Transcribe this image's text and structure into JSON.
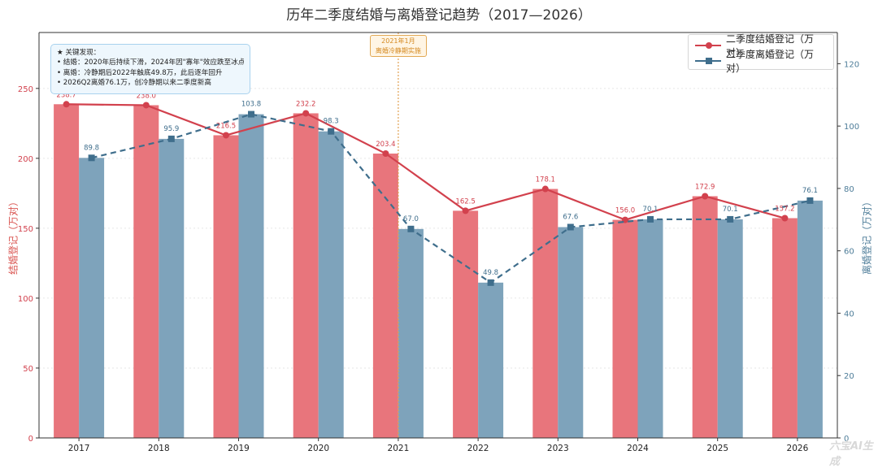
{
  "chart_data": {
    "type": "bar",
    "title": "历年二季度结婚与离婚登记趋势（2017—2026）",
    "categories": [
      "2017",
      "2018",
      "2019",
      "2020",
      "2021",
      "2022",
      "2023",
      "2024",
      "2025",
      "2026"
    ],
    "series": [
      {
        "name": "二季度结婚登记（万对）",
        "axis": "left",
        "values": [
          238.7,
          238.0,
          216.5,
          232.2,
          203.4,
          162.5,
          178.1,
          156.0,
          172.9,
          157.2
        ],
        "labels": [
          "238.7",
          "238.0",
          "216.5",
          "232.2",
          "203.4",
          "162.5",
          "178.1",
          "156.0",
          "172.9",
          "157.2"
        ]
      },
      {
        "name": "二季度离婚登记（万对）",
        "axis": "right",
        "values": [
          89.8,
          95.9,
          103.8,
          98.3,
          67.0,
          49.8,
          67.6,
          70.1,
          70.1,
          76.1
        ],
        "labels": [
          "89.8",
          "95.9",
          "103.8",
          "98.3",
          "67.0",
          "49.8",
          "67.6",
          "70.1",
          "70.1",
          "76.1"
        ]
      }
    ],
    "ylabel_left": "结婚登记（万对）",
    "ylabel_right": "离婚登记（万对）",
    "ylim_left": [
      0,
      290
    ],
    "ylim_right": [
      0,
      130
    ],
    "yticks_left": [
      0,
      50,
      100,
      150,
      200,
      250
    ],
    "yticks_right": [
      0,
      20,
      40,
      60,
      80,
      100,
      120
    ],
    "grid": true,
    "legend_position": "top-right",
    "colors": {
      "marriage_bar": "#e8757c",
      "marriage_line": "#d2414d",
      "divorce_bar": "#7ea3bb",
      "divorce_line": "#3f6e8c"
    },
    "annotation": {
      "x_position": 4,
      "lines": [
        "2021年1月",
        "离婚冷静期实施"
      ]
    },
    "insights": {
      "title": "★ 关键发现：",
      "lines": [
        "• 结婚：2020年后持续下滑，2024年因\"寡年\"效应跌至冰点",
        "• 离婚：冷静期后2022年触底49.8万，此后逐年回升",
        "• 2026Q2离婚76.1万，创冷静期以来二季度新高"
      ]
    },
    "watermark": "六宝AI生成"
  }
}
